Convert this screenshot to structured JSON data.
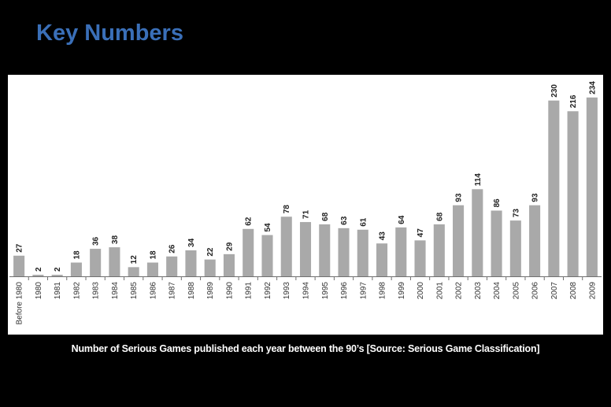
{
  "slide": {
    "title": "Key Numbers",
    "caption": "Number of Serious Games published each year between the 90’s [Source: Serious Game Classification]"
  },
  "colors": {
    "background": "#000000",
    "title": "#3a6fb8",
    "bar": "#a9a9a9",
    "axis": "#707070",
    "panel": "#ffffff"
  },
  "chart_data": {
    "type": "bar",
    "title": "",
    "xlabel": "",
    "ylabel": "",
    "grid": false,
    "ylim": [
      0,
      240
    ],
    "categories": [
      "Before 1980",
      "1980",
      "1981",
      "1982",
      "1983",
      "1984",
      "1985",
      "1986",
      "1987",
      "1988",
      "1989",
      "1990",
      "1991",
      "1992",
      "1993",
      "1994",
      "1995",
      "1996",
      "1997",
      "1998",
      "1999",
      "2000",
      "2001",
      "2002",
      "2003",
      "2004",
      "2005",
      "2006",
      "2007",
      "2008",
      "2009"
    ],
    "values": [
      27,
      2,
      2,
      18,
      36,
      38,
      12,
      18,
      26,
      34,
      22,
      29,
      62,
      54,
      78,
      71,
      68,
      63,
      61,
      43,
      64,
      47,
      68,
      93,
      114,
      86,
      73,
      93,
      230,
      216,
      234
    ]
  }
}
